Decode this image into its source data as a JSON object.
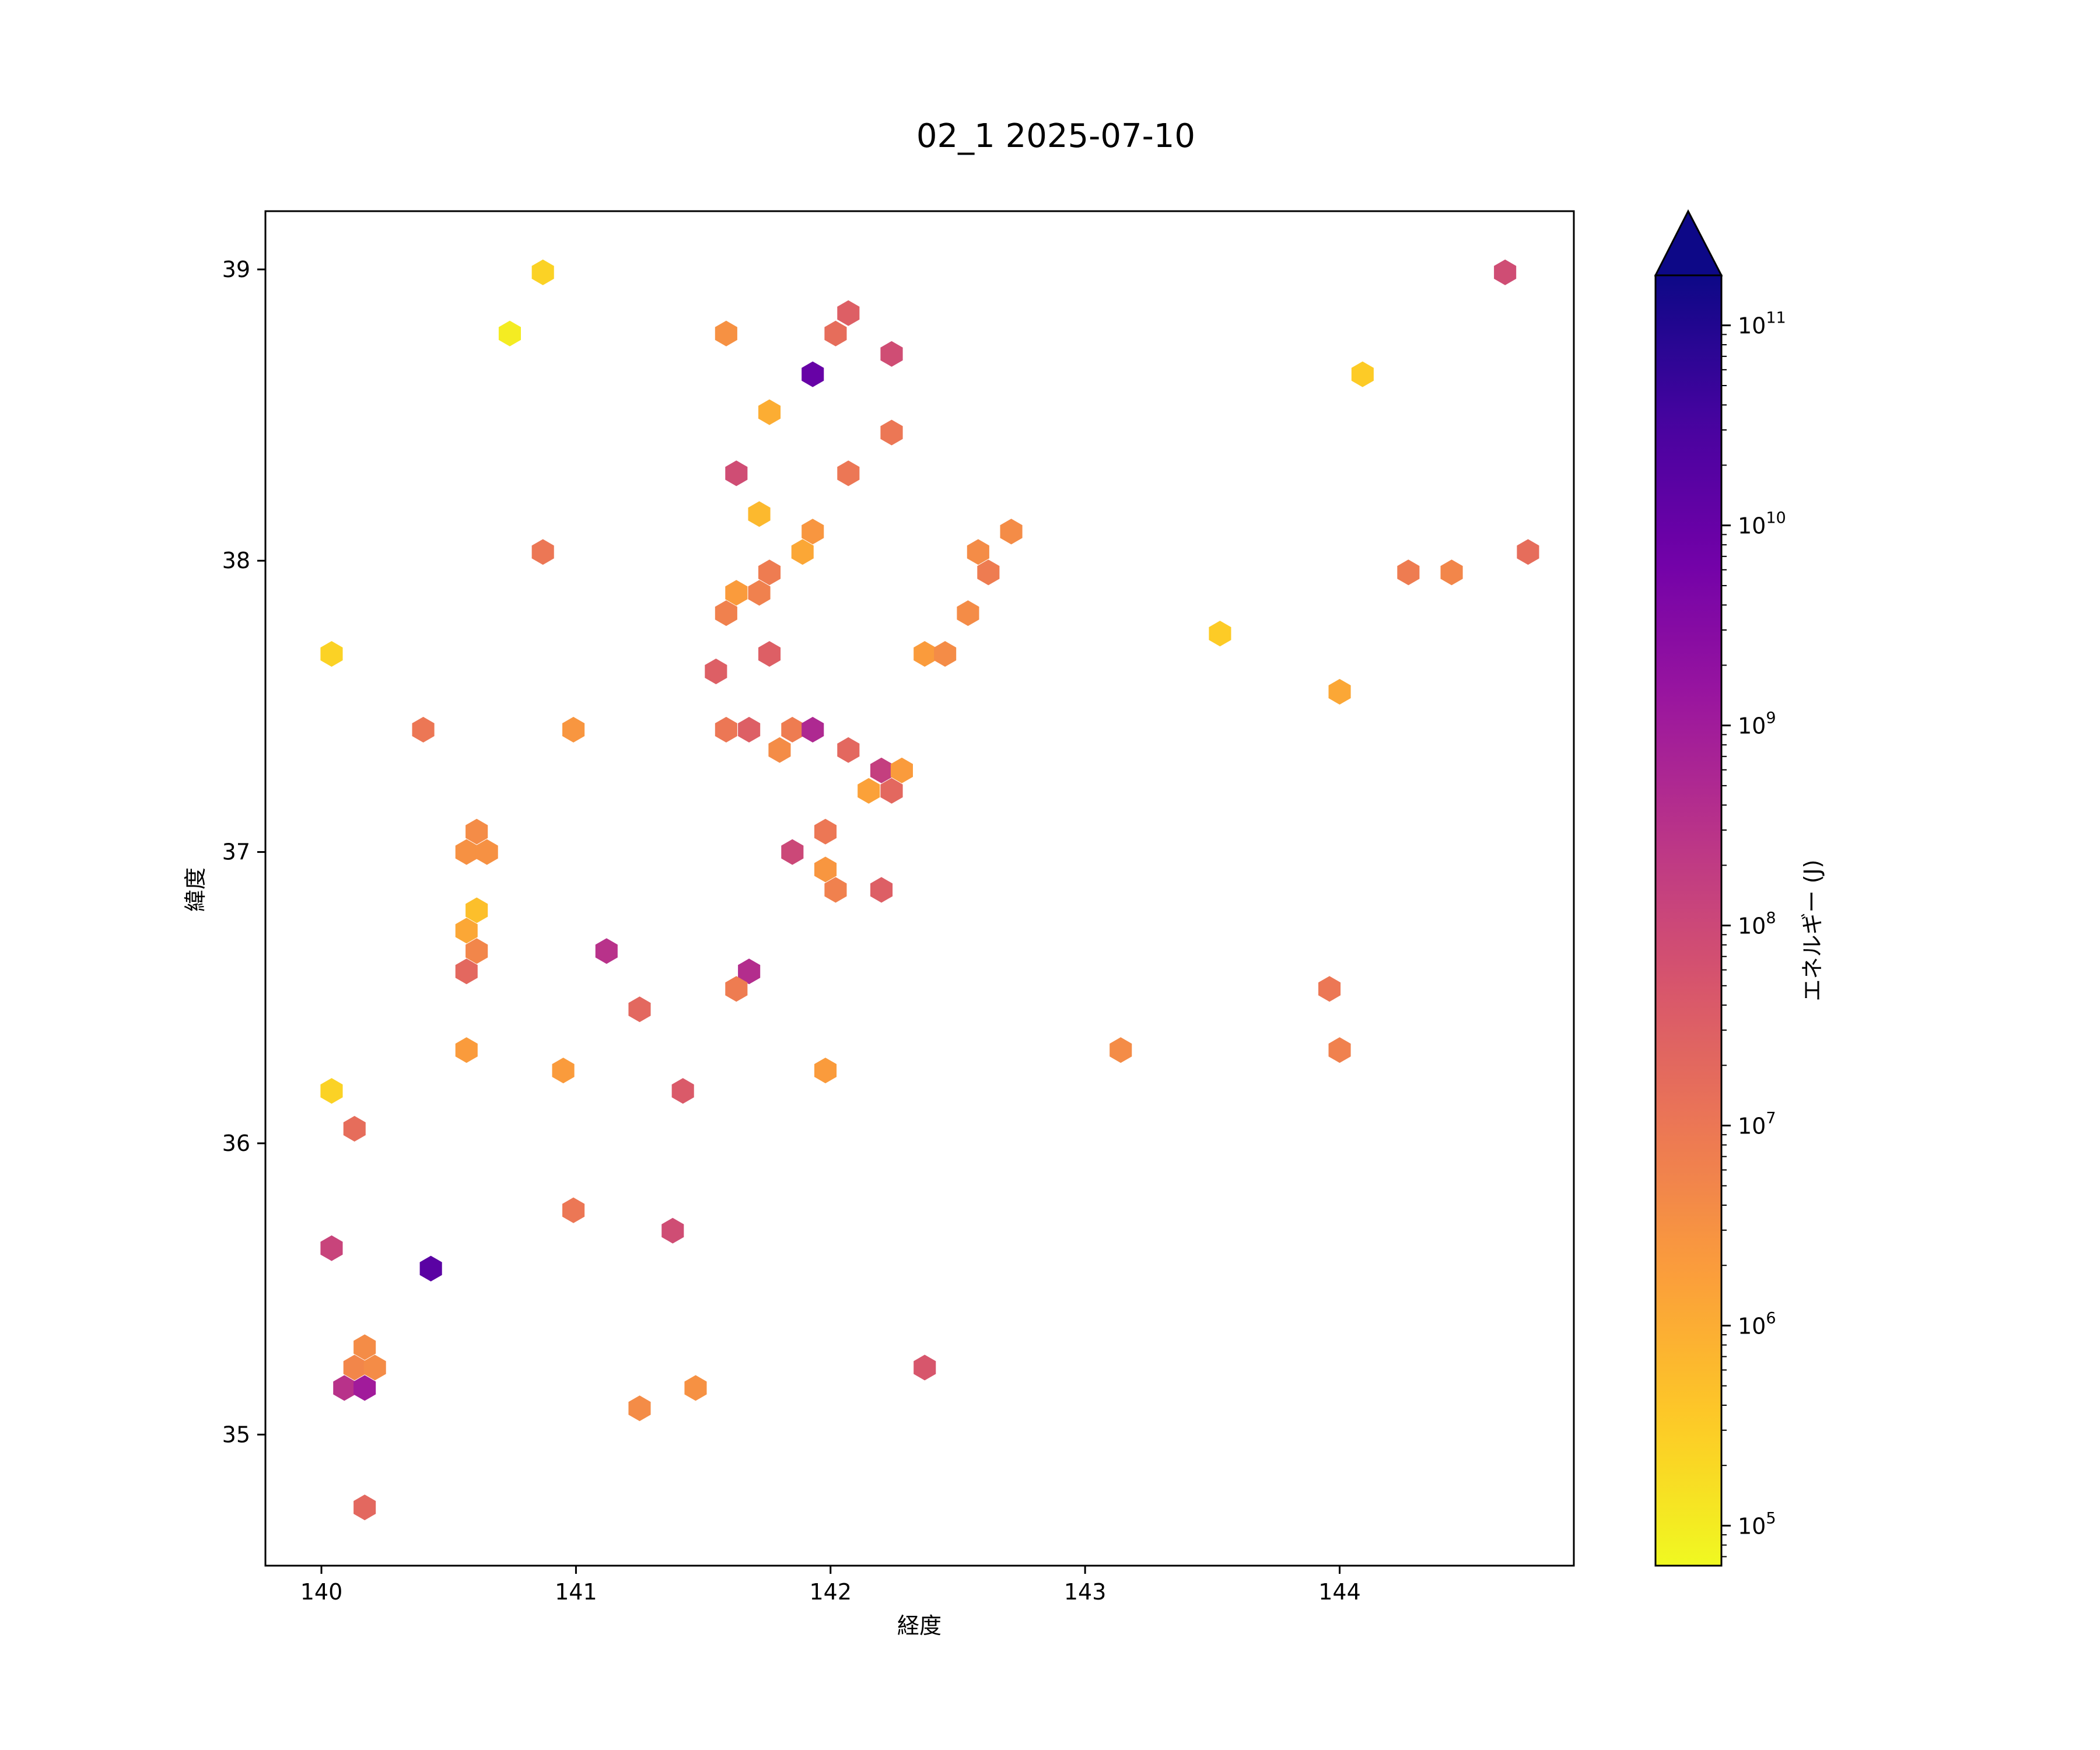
{
  "chart_data": {
    "type": "scatter",
    "mark": "hexbin",
    "title": "02_1 2025-07-10",
    "xlabel": "経度",
    "ylabel": "緯度",
    "xlim": [
      139.78,
      144.92
    ],
    "ylim": [
      34.55,
      39.2
    ],
    "x_ticks": [
      140,
      141,
      142,
      143,
      144
    ],
    "y_ticks": [
      35,
      36,
      37,
      38,
      39
    ],
    "grid": false,
    "colorbar": {
      "label": "エネルギー (J)",
      "scale": "log",
      "colormap": "plasma",
      "min_exp": 4.8,
      "max_exp": 11.25,
      "tick_exponents": [
        5,
        6,
        7,
        8,
        9,
        10,
        11
      ],
      "extend": "max",
      "stops": [
        "#0d0887",
        "#46039f",
        "#7201a8",
        "#9c179e",
        "#bd3786",
        "#d8576b",
        "#ed7953",
        "#fb9f3a",
        "#fdca26",
        "#f0f921"
      ]
    },
    "points": [
      [
        140.87,
        38.99,
        5.4
      ],
      [
        140.74,
        38.78,
        5.0
      ],
      [
        141.59,
        38.78,
        6.5
      ],
      [
        142.02,
        38.78,
        7.2
      ],
      [
        142.07,
        38.85,
        7.5
      ],
      [
        142.24,
        38.71,
        7.9
      ],
      [
        141.93,
        38.64,
        10.0
      ],
      [
        141.76,
        38.51,
        6.0
      ],
      [
        142.24,
        38.44,
        7.0
      ],
      [
        141.63,
        38.3,
        7.9
      ],
      [
        142.07,
        38.3,
        7.0
      ],
      [
        141.72,
        38.16,
        5.8
      ],
      [
        141.93,
        38.1,
        6.4
      ],
      [
        140.87,
        38.03,
        7.0
      ],
      [
        141.89,
        38.03,
        6.1
      ],
      [
        141.76,
        37.96,
        6.9
      ],
      [
        141.63,
        37.89,
        6.3
      ],
      [
        141.72,
        37.89,
        6.8
      ],
      [
        141.59,
        37.82,
        6.8
      ],
      [
        142.58,
        38.03,
        6.6
      ],
      [
        142.62,
        37.96,
        6.9
      ],
      [
        142.71,
        38.1,
        6.6
      ],
      [
        142.54,
        37.82,
        6.6
      ],
      [
        142.37,
        37.68,
        6.3
      ],
      [
        142.45,
        37.68,
        6.6
      ],
      [
        141.76,
        37.68,
        7.5
      ],
      [
        141.55,
        37.62,
        7.5
      ],
      [
        140.04,
        37.68,
        5.4
      ],
      [
        140.4,
        37.42,
        7.0
      ],
      [
        140.99,
        37.42,
        6.4
      ],
      [
        141.59,
        37.42,
        7.0
      ],
      [
        141.68,
        37.42,
        7.5
      ],
      [
        141.85,
        37.42,
        6.9
      ],
      [
        141.8,
        37.35,
        6.6
      ],
      [
        141.93,
        37.42,
        8.7
      ],
      [
        142.07,
        37.35,
        7.3
      ],
      [
        142.2,
        37.28,
        8.2
      ],
      [
        142.28,
        37.28,
        6.3
      ],
      [
        142.15,
        37.21,
        6.2
      ],
      [
        142.24,
        37.21,
        7.3
      ],
      [
        141.98,
        37.07,
        7.0
      ],
      [
        141.85,
        37.0,
        8.0
      ],
      [
        141.98,
        36.94,
        6.4
      ],
      [
        142.02,
        36.87,
        6.8
      ],
      [
        142.2,
        36.87,
        7.5
      ],
      [
        140.61,
        37.07,
        6.6
      ],
      [
        140.57,
        37.0,
        6.5
      ],
      [
        140.65,
        37.0,
        6.5
      ],
      [
        140.61,
        36.8,
        5.7
      ],
      [
        140.57,
        36.73,
        6.1
      ],
      [
        140.61,
        36.66,
        6.7
      ],
      [
        140.57,
        36.59,
        7.3
      ],
      [
        141.12,
        36.66,
        8.5
      ],
      [
        141.68,
        36.59,
        8.6
      ],
      [
        141.63,
        36.53,
        6.9
      ],
      [
        141.25,
        36.46,
        7.3
      ],
      [
        140.57,
        36.32,
        6.3
      ],
      [
        140.95,
        36.25,
        6.3
      ],
      [
        141.98,
        36.25,
        6.3
      ],
      [
        141.42,
        36.18,
        7.6
      ],
      [
        140.04,
        36.18,
        5.4
      ],
      [
        140.13,
        36.05,
        7.2
      ],
      [
        140.99,
        35.77,
        7.0
      ],
      [
        141.38,
        35.7,
        7.9
      ],
      [
        140.04,
        35.64,
        8.1
      ],
      [
        140.43,
        35.57,
        10.2
      ],
      [
        140.17,
        35.3,
        6.6
      ],
      [
        140.13,
        35.23,
        6.7
      ],
      [
        140.21,
        35.23,
        6.6
      ],
      [
        140.09,
        35.16,
        8.5
      ],
      [
        140.17,
        35.16,
        9.0
      ],
      [
        141.47,
        35.16,
        6.5
      ],
      [
        141.25,
        35.09,
        6.6
      ],
      [
        142.37,
        35.23,
        7.7
      ],
      [
        140.17,
        34.75,
        7.3
      ],
      [
        143.14,
        36.32,
        6.6
      ],
      [
        143.96,
        36.53,
        7.0
      ],
      [
        144.0,
        36.32,
        6.8
      ],
      [
        143.53,
        37.75,
        5.5
      ],
      [
        144.0,
        37.55,
        6.1
      ],
      [
        144.09,
        38.64,
        5.5
      ],
      [
        144.27,
        37.96,
        6.9
      ],
      [
        144.44,
        37.96,
        6.7
      ],
      [
        144.65,
        38.99,
        7.9
      ],
      [
        144.74,
        38.03,
        7.2
      ]
    ]
  }
}
